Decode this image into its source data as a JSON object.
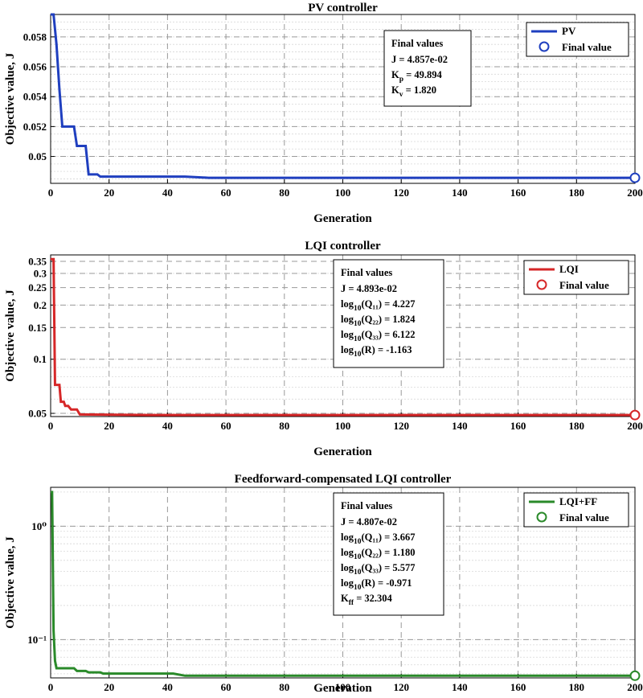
{
  "chart_data": [
    {
      "type": "line",
      "title": "PV controller",
      "xlabel": "Generation",
      "ylabel": "Objective value, J",
      "xlim": [
        0,
        200
      ],
      "ylim": [
        0.0482,
        0.0595
      ],
      "yscale": "linear",
      "xticks": [
        0,
        20,
        40,
        60,
        80,
        100,
        120,
        140,
        160,
        180,
        200
      ],
      "yticks": [
        0.05,
        0.052,
        0.054,
        0.056,
        0.058
      ],
      "ytick_labels": [
        "0.05",
        "0.052",
        "0.054",
        "0.056",
        "0.058"
      ],
      "grid": true,
      "legend_position": "top-right",
      "series": [
        {
          "name": "PV",
          "color": "#1f3fbf",
          "x": [
            0,
            1,
            2,
            3,
            4,
            8,
            9,
            12,
            13,
            16,
            17,
            46,
            54,
            200
          ],
          "y": [
            0.0595,
            0.0595,
            0.0575,
            0.0545,
            0.052,
            0.052,
            0.0507,
            0.0507,
            0.0488,
            0.0488,
            0.04865,
            0.04865,
            0.048573,
            0.048573
          ]
        }
      ],
      "final_marker": {
        "name": "Final value",
        "x": 200,
        "y": 0.048573,
        "color": "#1f3fbf"
      },
      "annotation": {
        "heading": "Final values",
        "lines": [
          {
            "pre": "J  =  4.857e-02",
            "sub": "",
            "post": ""
          },
          {
            "pre": "K",
            "sub": "p",
            "post": "  =  49.894"
          },
          {
            "pre": "K",
            "sub": "v",
            "post": "  =  1.820"
          }
        ]
      }
    },
    {
      "type": "line",
      "title": "LQI controller",
      "xlabel": "Generation",
      "ylabel": "Objective value, J",
      "xlim": [
        0,
        200
      ],
      "ylim": [
        0.048,
        0.38
      ],
      "yscale": "log",
      "xticks": [
        0,
        20,
        40,
        60,
        80,
        100,
        120,
        140,
        160,
        180,
        200
      ],
      "yticks": [
        0.05,
        0.1,
        0.15,
        0.2,
        0.25,
        0.3,
        0.35
      ],
      "ytick_labels": [
        "0.05",
        "0.1",
        "0.15",
        "0.2",
        "0.25",
        "0.3",
        "0.35"
      ],
      "grid": true,
      "legend_position": "top-right",
      "series": [
        {
          "name": "LQI",
          "color": "#d62728",
          "x": [
            0,
            1,
            1.5,
            3,
            3.5,
            4.5,
            5,
            6,
            7,
            9,
            10,
            34,
            200
          ],
          "y": [
            0.36,
            0.36,
            0.072,
            0.072,
            0.058,
            0.058,
            0.055,
            0.055,
            0.0525,
            0.0525,
            0.0493,
            0.04893,
            0.04893
          ]
        }
      ],
      "final_marker": {
        "name": "Final value",
        "x": 200,
        "y": 0.04893,
        "color": "#d62728"
      },
      "annotation": {
        "heading": "Final values",
        "lines": [
          {
            "pre": "J  =  4.893e-02",
            "sub": "",
            "post": ""
          },
          {
            "pre": "log",
            "sub": "10",
            "post": "(Q₁₁)  =  4.227"
          },
          {
            "pre": "log",
            "sub": "10",
            "post": "(Q₂₂)  =  1.824"
          },
          {
            "pre": "log",
            "sub": "10",
            "post": "(Q₃₃)  =  6.122"
          },
          {
            "pre": "log",
            "sub": "10",
            "post": "(R)  =  -1.163"
          }
        ]
      }
    },
    {
      "type": "line",
      "title": "Feedforward-compensated LQI controller",
      "xlabel": "Generation",
      "ylabel": "Objective value, J",
      "xlim": [
        0,
        200
      ],
      "ylim": [
        0.046,
        2.2
      ],
      "yscale": "log",
      "xticks": [
        0,
        20,
        40,
        60,
        80,
        100,
        120,
        140,
        160,
        180,
        200
      ],
      "yticks": [
        0.1,
        1
      ],
      "ytick_labels": [
        "10⁻¹",
        "10⁰"
      ],
      "grid": true,
      "legend_position": "top-right",
      "series": [
        {
          "name": "LQI+FF",
          "color": "#2a8a2a",
          "x": [
            0,
            0.5,
            1,
            1.5,
            2,
            8,
            9,
            12,
            13,
            17,
            18,
            42,
            46,
            200
          ],
          "y": [
            2.0,
            2.0,
            0.12,
            0.065,
            0.056,
            0.056,
            0.053,
            0.053,
            0.0515,
            0.0515,
            0.0502,
            0.0502,
            0.04807,
            0.04807
          ]
        }
      ],
      "final_marker": {
        "name": "Final value",
        "x": 200,
        "y": 0.04807,
        "color": "#2a8a2a"
      },
      "annotation": {
        "heading": "Final values",
        "lines": [
          {
            "pre": "J  =  4.807e-02",
            "sub": "",
            "post": ""
          },
          {
            "pre": "log",
            "sub": "10",
            "post": "(Q₁₁)  =  3.667"
          },
          {
            "pre": "log",
            "sub": "10",
            "post": "(Q₂₂)  =  1.180"
          },
          {
            "pre": "log",
            "sub": "10",
            "post": "(Q₃₃)  =  5.577"
          },
          {
            "pre": "log",
            "sub": "10",
            "post": "(R)  =  -0.971"
          },
          {
            "pre": "K",
            "sub": "ff",
            "post": "  =  32.304"
          }
        ]
      }
    }
  ]
}
